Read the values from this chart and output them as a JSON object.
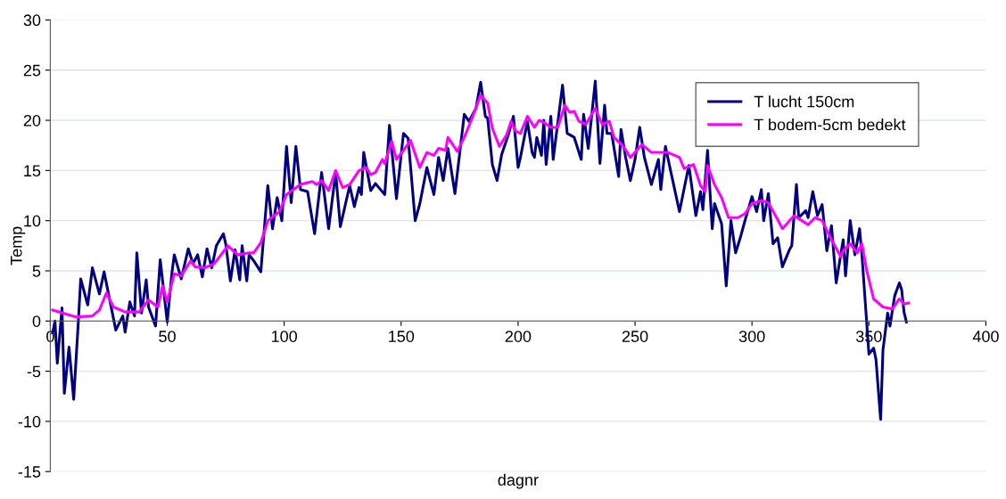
{
  "chart_data": {
    "type": "line",
    "xlabel": "dagnr",
    "ylabel": "Temp",
    "xlim": [
      0,
      400
    ],
    "xticks": [
      0,
      50,
      100,
      150,
      200,
      250,
      300,
      350,
      400
    ],
    "ylim": [
      -15,
      30
    ],
    "yticks": [
      -15,
      -10,
      -5,
      0,
      5,
      10,
      15,
      20,
      25,
      30
    ],
    "grid": "y",
    "legend": "top right",
    "marker": "none",
    "line_style": "solid",
    "series": [
      {
        "name": "T lucht 150cm",
        "color": "#000080",
        "x": [
          1,
          2,
          3,
          5,
          6,
          8,
          10,
          12,
          13,
          16,
          18,
          21,
          23,
          28,
          31,
          32,
          34,
          36,
          37,
          39,
          41,
          42,
          45,
          47,
          50,
          52,
          53,
          56,
          59,
          61,
          63,
          65,
          67,
          69,
          71,
          74,
          75,
          77,
          79,
          81,
          82,
          84,
          85,
          87,
          90,
          93,
          95,
          97,
          99,
          101,
          103,
          105,
          107,
          110,
          113,
          116,
          119,
          122,
          124,
          128,
          130,
          132,
          133,
          134,
          137,
          139,
          143,
          145,
          148,
          151,
          153,
          156,
          158,
          161,
          164,
          166,
          168,
          170,
          173,
          177,
          179,
          182,
          184,
          186,
          187,
          189,
          191,
          193,
          196,
          198,
          200,
          201,
          204,
          206,
          207,
          208,
          210,
          211,
          212,
          214,
          215,
          219,
          221,
          224,
          227,
          228,
          230,
          233,
          235,
          237,
          238,
          240,
          243,
          244,
          246,
          248,
          250,
          252,
          254,
          257,
          260,
          261,
          263,
          265,
          269,
          273,
          276,
          278,
          279,
          281,
          283,
          284,
          287,
          289,
          291,
          293,
          295,
          297,
          300,
          302,
          304,
          305,
          307,
          309,
          311,
          313,
          316,
          317,
          319,
          320,
          323,
          324,
          326,
          328,
          330,
          332,
          334,
          336,
          339,
          340,
          342,
          344,
          346,
          347,
          350,
          352,
          353,
          355,
          356,
          358,
          359,
          361,
          363,
          364,
          365,
          366
        ],
        "values": [
          -1.2,
          0,
          -4.2,
          1.3,
          -7.2,
          -2.6,
          -7.8,
          0,
          4.2,
          1.6,
          5.3,
          2.7,
          4.9,
          -0.9,
          0.5,
          -1.1,
          1.9,
          0.5,
          6.8,
          0.8,
          4.1,
          1.4,
          -0.5,
          6.1,
          -0.1,
          4.8,
          6.6,
          4.2,
          7.2,
          5.7,
          6.6,
          4.4,
          7.2,
          5.3,
          7.5,
          8.7,
          7.7,
          4.0,
          7.1,
          4.1,
          7.5,
          4.0,
          6.6,
          6.0,
          4.9,
          13.5,
          9.2,
          12.3,
          10.0,
          17.4,
          11.8,
          17.4,
          13.1,
          12.9,
          8.7,
          14.8,
          9.2,
          14.8,
          9.4,
          13.5,
          11.4,
          13.3,
          12.6,
          16.8,
          13.0,
          13.7,
          12.6,
          19.5,
          12.2,
          18.7,
          18.2,
          10.0,
          11.7,
          15.3,
          12.6,
          16.3,
          14.0,
          17.2,
          12.7,
          20.6,
          19.9,
          21.2,
          23.8,
          20.4,
          20.2,
          15.6,
          14.0,
          16.6,
          18.7,
          20.4,
          15.3,
          16.3,
          19.9,
          16.8,
          16.3,
          18.3,
          16.5,
          20.0,
          15.6,
          20.4,
          16.1,
          23.5,
          18.7,
          18.3,
          16.1,
          20.6,
          17.2,
          23.9,
          15.7,
          21.5,
          18.7,
          18.7,
          14.4,
          19.1,
          16.3,
          14.0,
          16.1,
          19.3,
          16.3,
          13.6,
          16.1,
          13.1,
          17.4,
          15.2,
          10.9,
          15.5,
          10.5,
          12.9,
          11.1,
          17.0,
          9.2,
          11.7,
          9.7,
          3.5,
          10.0,
          6.8,
          8.3,
          10.0,
          12.4,
          10.9,
          13.1,
          10.0,
          12.7,
          7.7,
          8.3,
          5.4,
          7.1,
          7.5,
          13.6,
          10.3,
          11.0,
          10.3,
          12.9,
          10.5,
          11.6,
          7.0,
          9.5,
          3.8,
          8.1,
          4.5,
          10.0,
          6.6,
          9.2,
          6.6,
          -3.3,
          -2.7,
          -3.8,
          -9.8,
          -2.9,
          0.8,
          -0.5,
          2.5,
          3.8,
          3.1,
          0.9,
          -0.1
        ]
      },
      {
        "name": "T bodem-5cm bedekt",
        "color": "#ff00ff",
        "x": [
          1,
          11,
          18,
          21,
          24,
          27,
          32,
          38,
          42,
          46,
          48,
          50,
          53,
          56,
          60,
          62,
          66,
          70,
          76,
          80,
          85,
          87,
          90,
          93,
          98,
          101,
          107,
          112,
          114,
          116,
          119,
          122,
          125,
          128,
          132,
          135,
          137,
          139,
          142,
          143,
          146,
          148,
          151,
          154,
          158,
          161,
          164,
          166,
          169,
          170,
          174,
          177,
          180,
          184,
          187,
          189,
          192,
          195,
          197,
          199,
          201,
          204,
          207,
          209,
          211,
          214,
          217,
          220,
          222,
          224,
          226,
          229,
          233,
          236,
          239,
          241,
          245,
          248,
          253,
          257,
          260,
          264,
          269,
          271,
          275,
          278,
          280,
          281,
          284,
          287,
          290,
          294,
          297,
          300,
          304,
          307,
          311,
          313,
          318,
          320,
          324,
          327,
          330,
          334,
          338,
          339,
          342,
          345,
          347,
          349,
          352,
          356,
          360,
          363,
          365,
          367
        ],
        "values": [
          1.1,
          0.4,
          0.5,
          1.1,
          2.8,
          1.4,
          0.9,
          0.9,
          2.1,
          1.4,
          3.5,
          1.9,
          4.7,
          4.5,
          6.0,
          5.4,
          5.3,
          5.7,
          7.5,
          6.6,
          6.8,
          6.8,
          7.8,
          10.0,
          10.9,
          12.6,
          13.6,
          13.9,
          13.6,
          14.0,
          13.0,
          15.0,
          13.3,
          13.6,
          15.0,
          15.3,
          14.6,
          14.8,
          16.1,
          15.7,
          17.9,
          16.1,
          17.0,
          18.0,
          15.3,
          16.8,
          16.5,
          17.2,
          17.0,
          18.3,
          16.9,
          18.3,
          20.0,
          22.5,
          21.7,
          19.2,
          17.4,
          18.5,
          19.9,
          18.9,
          18.7,
          20.4,
          19.3,
          20.0,
          19.8,
          19.3,
          19.3,
          21.5,
          20.8,
          20.9,
          19.9,
          19.6,
          21.2,
          19.6,
          19.9,
          18.3,
          17.4,
          16.3,
          17.6,
          16.8,
          16.8,
          16.8,
          16.3,
          15.2,
          15.6,
          13.5,
          12.9,
          15.5,
          13.6,
          12.3,
          10.3,
          10.3,
          10.7,
          11.7,
          12.0,
          11.8,
          10.1,
          9.2,
          10.5,
          10.2,
          9.6,
          10.3,
          10.0,
          8.1,
          6.4,
          7.0,
          7.7,
          6.8,
          7.7,
          5.1,
          2.2,
          1.4,
          1.2,
          2.2,
          1.7,
          1.8
        ]
      }
    ]
  }
}
